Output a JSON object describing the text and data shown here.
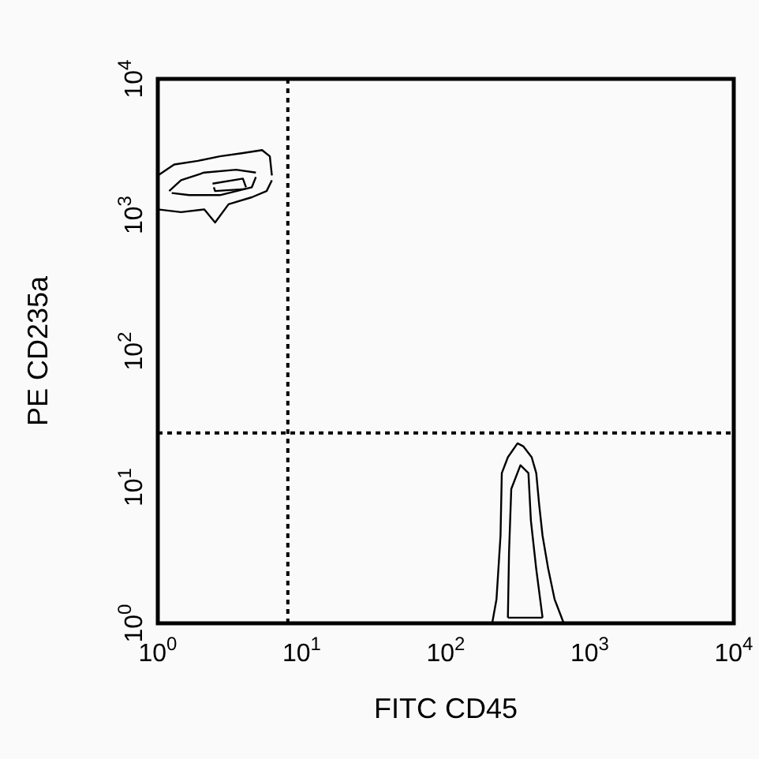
{
  "chart_data": {
    "type": "line",
    "xlabel": "FITC CD45",
    "ylabel": "PE CD235a",
    "log": "xy",
    "grid": false,
    "marker": "none",
    "line_style": "solid",
    "xlim": [
      1,
      10000
    ],
    "ylim": [
      1,
      10000
    ],
    "xticks": [
      {
        "value": 1,
        "label": "10$^{0}$"
      },
      {
        "value": 10,
        "label": "10$^{1}$"
      },
      {
        "value": 100,
        "label": "10$^{2}$"
      },
      {
        "value": 1000,
        "label": "10$^{3}$"
      },
      {
        "value": 10000,
        "label": "10$^{4}$"
      }
    ],
    "yticks": [
      {
        "value": 1,
        "label": "10$^{0}$"
      },
      {
        "value": 10,
        "label": "10$^{1}$"
      },
      {
        "value": 100,
        "label": "10$^{2}$"
      },
      {
        "value": 1000,
        "label": "10$^{3}$"
      },
      {
        "value": 10000,
        "label": "10$^{4}$"
      }
    ],
    "ref_lines": [
      {
        "axis": "x",
        "value": 8,
        "color": "#000000",
        "line_style": "dotted"
      },
      {
        "axis": "y",
        "value": 25,
        "color": "#000000",
        "line_style": "dotted"
      }
    ],
    "series": [
      {
        "color": "#000000",
        "x": [
          1,
          1.3,
          1.9,
          2.7,
          3.9,
          5.3,
          6.0,
          6.2
        ],
        "values": [
          1950,
          2350,
          2500,
          2700,
          2850,
          3000,
          2700,
          1950
        ]
      },
      {
        "color": "#000000",
        "x": [
          1,
          1.45,
          2.1,
          2.5,
          3.1,
          4.5,
          5.7,
          6.2
        ],
        "values": [
          1100,
          1050,
          1100,
          880,
          1200,
          1350,
          1500,
          1800
        ]
      },
      {
        "color": "#000000",
        "x": [
          1.2,
          1.45,
          2.1,
          3.5,
          4.8
        ],
        "values": [
          1500,
          1800,
          2050,
          2150,
          2050
        ]
      },
      {
        "color": "#000000",
        "x": [
          1.25,
          1.65,
          2.7,
          4.5,
          4.8
        ],
        "values": [
          1450,
          1400,
          1400,
          1600,
          1900
        ]
      },
      {
        "color": "#000000",
        "x": [
          2.4,
          3.9,
          4.1
        ],
        "values": [
          1700,
          1850,
          1600
        ]
      },
      {
        "color": "#000000",
        "x": [
          2.45,
          2.5,
          4.05
        ],
        "values": [
          1600,
          1500,
          1550
        ]
      },
      {
        "color": "#000000",
        "x": [
          210,
          225,
          240,
          245,
          270,
          315,
          345,
          395,
          425,
          445,
          470,
          515,
          570,
          660
        ],
        "values": [
          1,
          1.5,
          4.4,
          12.7,
          16.6,
          21,
          20,
          16.6,
          12.7,
          7.5,
          4.4,
          2.5,
          1.5,
          1
        ]
      },
      {
        "color": "#000000",
        "x": [
          270,
          275,
          285,
          330,
          375,
          390,
          425,
          470
        ],
        "values": [
          1.1,
          3.3,
          9.7,
          14.5,
          12.7,
          5.7,
          2.5,
          1.1
        ]
      },
      {
        "color": "#000000",
        "x": [
          270,
          470
        ],
        "values": [
          1.1,
          1.1
        ]
      }
    ]
  }
}
